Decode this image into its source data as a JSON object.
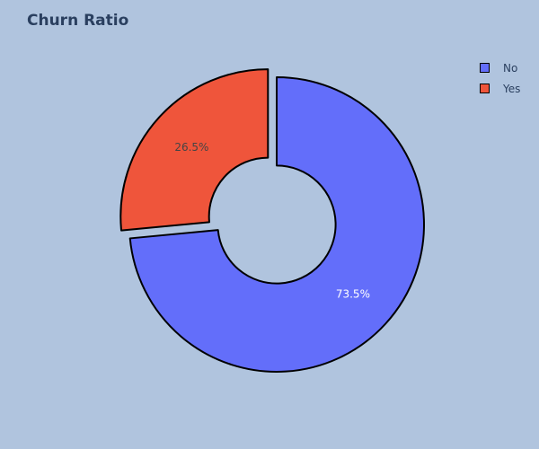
{
  "chart_data": {
    "type": "pie",
    "title": "Churn Ratio",
    "hole": 0.4,
    "categories": [
      "No",
      "Yes"
    ],
    "values": [
      73.5,
      26.5
    ],
    "labels": [
      "73.5%",
      "26.5%"
    ],
    "colors": [
      "#636efa",
      "#ef553b"
    ],
    "label_colors": [
      "#ffffff",
      "#444444"
    ],
    "pull": [
      0,
      0.08
    ],
    "legend_position": "top-right"
  }
}
